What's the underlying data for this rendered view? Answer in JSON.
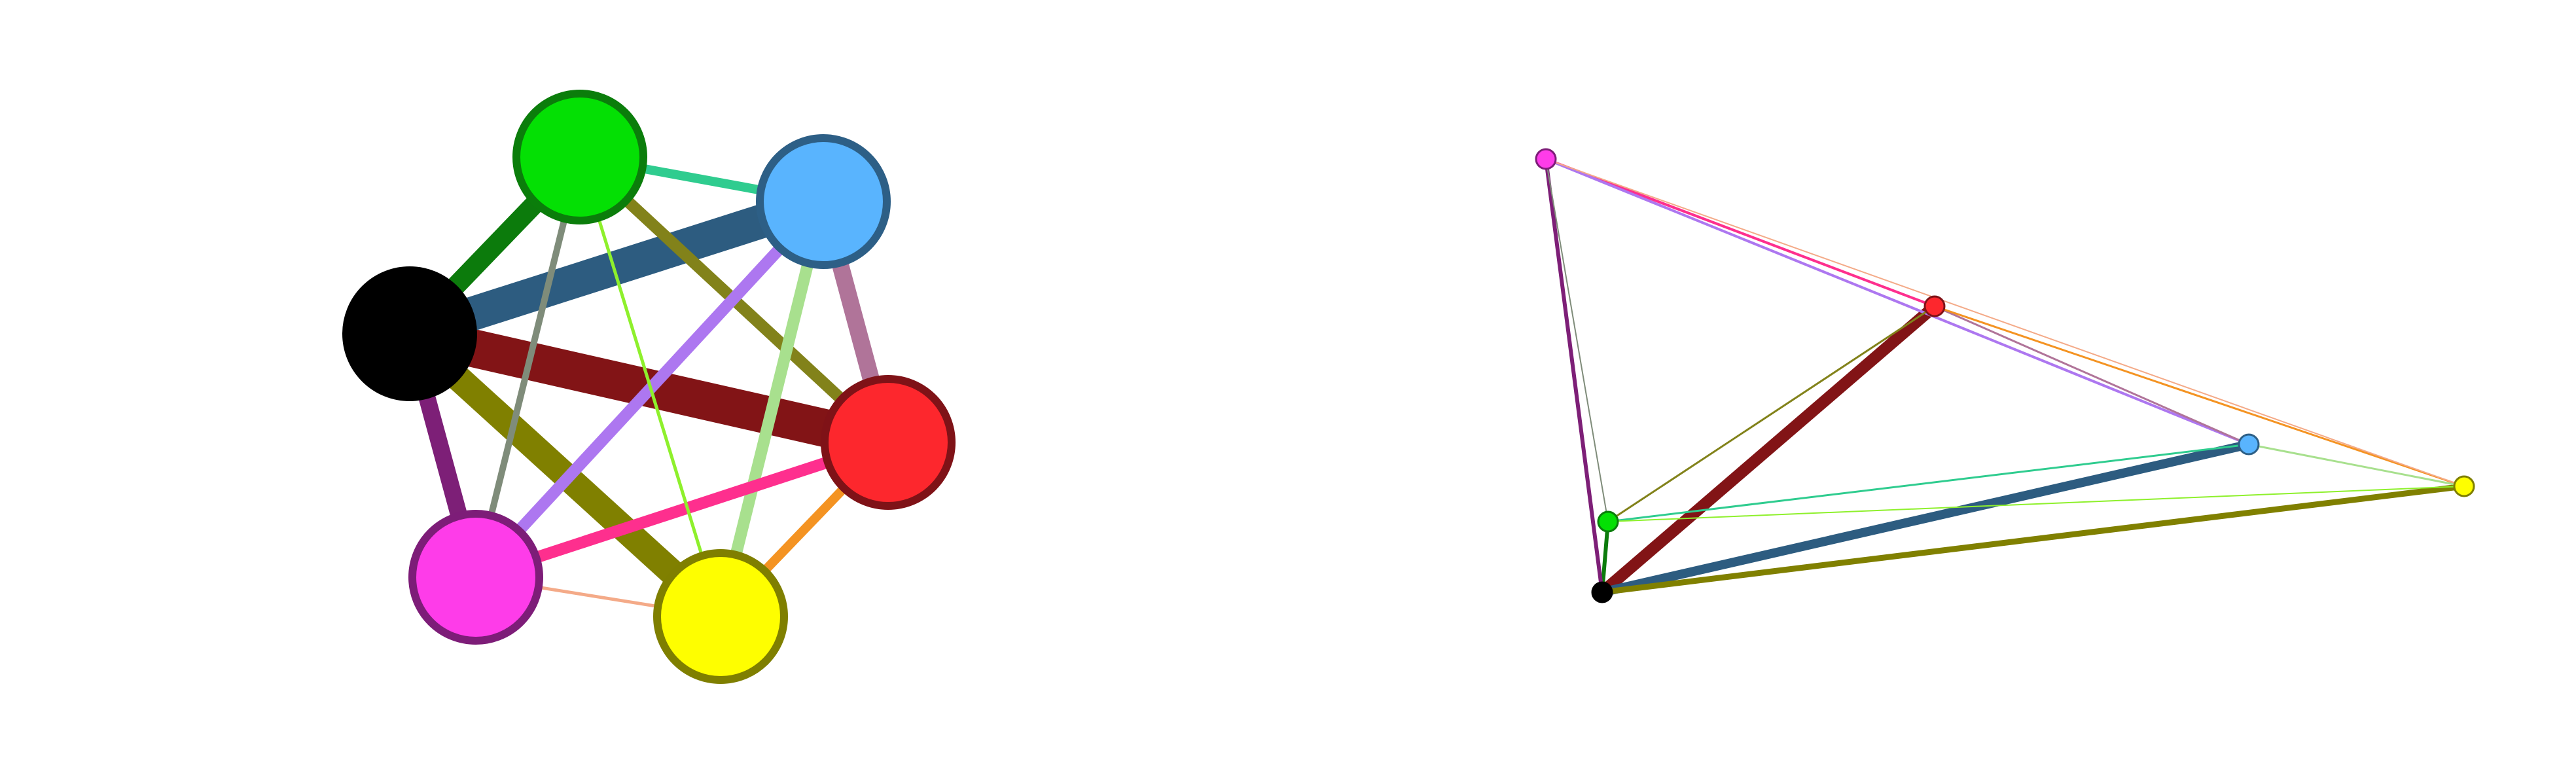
{
  "colors": {
    "background": "#ffffff",
    "black": "#000000",
    "green": "#04e004",
    "blue": "#59b4fe",
    "red": "#fd272d",
    "magenta": "#fe3ce9",
    "yellow": "#fefe00"
  },
  "diagrams": [
    {
      "id": "left-graph",
      "nodes": [
        {
          "id": "black",
          "fill": "#000000",
          "stroke": "#000000"
        },
        {
          "id": "green",
          "fill": "#04e004",
          "stroke": "#0b7d0b"
        },
        {
          "id": "blue",
          "fill": "#59b4fe",
          "stroke": "#2d5f86"
        },
        {
          "id": "red",
          "fill": "#fd272d",
          "stroke": "#7f1217"
        },
        {
          "id": "magenta",
          "fill": "#fe3ce9",
          "stroke": "#7d1d78"
        },
        {
          "id": "yellow",
          "fill": "#fefe00",
          "stroke": "#7f7f00"
        }
      ],
      "edges": [
        {
          "from": "black",
          "to": "red",
          "color": "#821416",
          "weight": 58
        },
        {
          "from": "black",
          "to": "blue",
          "color": "#2d5c80",
          "weight": 52
        },
        {
          "from": "black",
          "to": "yellow",
          "color": "#808000",
          "weight": 40
        },
        {
          "from": "black",
          "to": "green",
          "color": "#0c7b0c",
          "weight": 30
        },
        {
          "from": "black",
          "to": "magenta",
          "color": "#7d1f77",
          "weight": 26
        },
        {
          "from": "green",
          "to": "red",
          "color": "#82821a",
          "weight": 18
        },
        {
          "from": "blue",
          "to": "red",
          "color": "#b07499",
          "weight": 26
        },
        {
          "from": "magenta",
          "to": "blue",
          "color": "#ad77f0",
          "weight": 18
        },
        {
          "from": "yellow",
          "to": "blue",
          "color": "#a8e08e",
          "weight": 18
        },
        {
          "from": "green",
          "to": "blue",
          "color": "#2fcc8f",
          "weight": 14
        },
        {
          "from": "magenta",
          "to": "red",
          "color": "#fe2f8e",
          "weight": 18
        },
        {
          "from": "yellow",
          "to": "red",
          "color": "#f49322",
          "weight": 14
        },
        {
          "from": "green",
          "to": "magenta",
          "color": "#7f8c7a",
          "weight": 10
        },
        {
          "from": "green",
          "to": "yellow",
          "color": "#8ef02c",
          "weight": 5
        },
        {
          "from": "magenta",
          "to": "yellow",
          "color": "#f4aa88",
          "weight": 5
        }
      ]
    },
    {
      "id": "right-graph",
      "nodes": [
        {
          "id": "magenta",
          "fill": "#fe3ce9",
          "stroke": "#7d1d78"
        },
        {
          "id": "red",
          "fill": "#fd272d",
          "stroke": "#7f1217"
        },
        {
          "id": "blue",
          "fill": "#59b4fe",
          "stroke": "#2d5f86"
        },
        {
          "id": "yellow",
          "fill": "#fefe00",
          "stroke": "#7f7f00"
        },
        {
          "id": "green",
          "fill": "#04e004",
          "stroke": "#0b7d0b"
        },
        {
          "id": "black",
          "fill": "#000000",
          "stroke": "#000000"
        }
      ],
      "edges": [
        {
          "from": "black",
          "to": "red",
          "color": "#821416",
          "weight": 18
        },
        {
          "from": "black",
          "to": "blue",
          "color": "#2d5c80",
          "weight": 14
        },
        {
          "from": "black",
          "to": "yellow",
          "color": "#808000",
          "weight": 9
        },
        {
          "from": "black",
          "to": "green",
          "color": "#0c7b0c",
          "weight": 6
        },
        {
          "from": "black",
          "to": "magenta",
          "color": "#7d1f77",
          "weight": 6
        },
        {
          "from": "magenta",
          "to": "red",
          "color": "#fe2f8e",
          "weight": 4
        },
        {
          "from": "magenta",
          "to": "blue",
          "color": "#ad77f0",
          "weight": 4
        },
        {
          "from": "red",
          "to": "blue",
          "color": "#b07499",
          "weight": 3
        },
        {
          "from": "red",
          "to": "yellow",
          "color": "#f49322",
          "weight": 3
        },
        {
          "from": "green",
          "to": "red",
          "color": "#82821a",
          "weight": 3
        },
        {
          "from": "green",
          "to": "blue",
          "color": "#2fcc8f",
          "weight": 3
        },
        {
          "from": "blue",
          "to": "yellow",
          "color": "#a8e08e",
          "weight": 3
        },
        {
          "from": "green",
          "to": "yellow",
          "color": "#8ef02c",
          "weight": 2
        },
        {
          "from": "green",
          "to": "magenta",
          "color": "#7f8c7a",
          "weight": 2
        },
        {
          "from": "magenta",
          "to": "yellow",
          "color": "#f4aa88",
          "weight": 2
        }
      ]
    }
  ]
}
